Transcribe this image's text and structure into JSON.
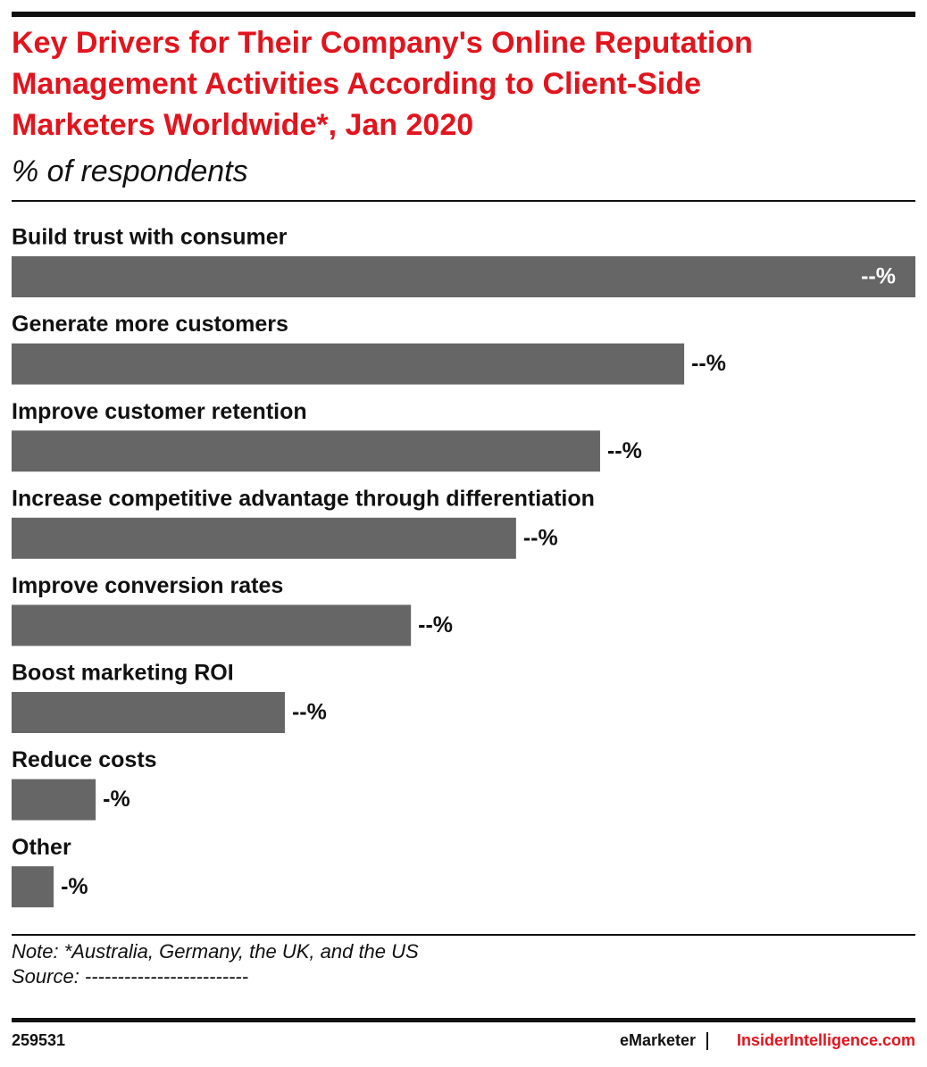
{
  "chart_data": {
    "type": "bar",
    "title": "Key Drivers for Their Company's Online Reputation Management Activities According to Client-Side Marketers Worldwide*, Jan 2020",
    "title_lines": [
      "Key Drivers for Their Company's Online Reputation",
      "Management Activities According to Client-Side",
      "Marketers Worldwide*, Jan 2020"
    ],
    "subtitle": "% of respondents",
    "categories": [
      "Build trust with consumer",
      "Generate more customers",
      "Improve customer retention",
      "Increase competitive advantage through differentiation",
      "Improve conversion rates",
      "Boost marketing ROI",
      "Reduce costs",
      "Other"
    ],
    "values": [
      43,
      32,
      28,
      24,
      19,
      13,
      4,
      2
    ],
    "value_labels": [
      "--%",
      "--%",
      "--%",
      "--%",
      "--%",
      "--%",
      "-%",
      "-%"
    ],
    "color": "#666666",
    "note": "Note: *Australia, Germany, the UK, and the US",
    "source": "Source: -------------------------",
    "chart_id": "259531",
    "brand": "eMarketer",
    "site": "InsiderIntelligence.com"
  }
}
